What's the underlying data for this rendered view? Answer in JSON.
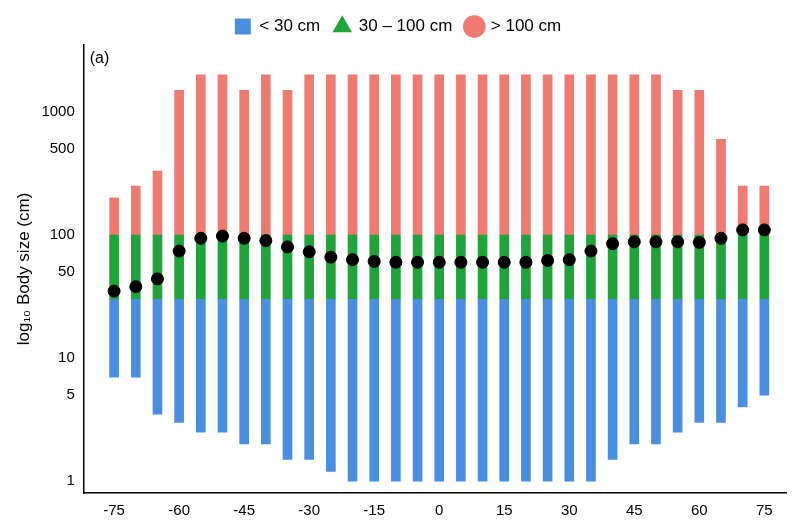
{
  "chart_data": {
    "type": "scatter",
    "annotation": "(a)",
    "y_label": "log₁₀ Body size (cm)",
    "log": "y",
    "grid": false,
    "legend": "top",
    "x": [
      -75,
      -70,
      -65,
      -60,
      -55,
      -50,
      -45,
      -40,
      -35,
      -30,
      -25,
      -20,
      -15,
      -10,
      -5,
      0,
      5,
      10,
      15,
      20,
      25,
      30,
      35,
      40,
      45,
      50,
      55,
      60,
      65,
      70,
      75
    ],
    "xlim": [
      -82,
      80
    ],
    "xticks": [
      -75,
      -60,
      -45,
      -30,
      -15,
      0,
      15,
      30,
      45,
      60,
      75
    ],
    "ylim": [
      0.8,
      3500
    ],
    "yticks": [
      1,
      5,
      10,
      50,
      100,
      500,
      1000
    ],
    "series": [
      {
        "name": "< 30 cm",
        "type": "bar",
        "marker": "square",
        "color": "#4a8ee0",
        "values": [
          [
            7,
            30
          ],
          [
            7,
            30
          ],
          [
            3.5,
            30
          ],
          [
            3,
            30
          ],
          [
            2.5,
            30
          ],
          [
            2.5,
            30
          ],
          [
            2,
            30
          ],
          [
            2,
            30
          ],
          [
            1.5,
            30
          ],
          [
            1.5,
            30
          ],
          [
            1.2,
            30
          ],
          [
            1,
            30
          ],
          [
            1,
            30
          ],
          [
            1,
            30
          ],
          [
            1,
            30
          ],
          [
            1,
            30
          ],
          [
            1,
            30
          ],
          [
            1,
            30
          ],
          [
            1,
            30
          ],
          [
            1,
            30
          ],
          [
            1,
            30
          ],
          [
            1,
            30
          ],
          [
            1,
            30
          ],
          [
            1.5,
            30
          ],
          [
            2,
            30
          ],
          [
            2,
            30
          ],
          [
            2.5,
            30
          ],
          [
            3,
            30
          ],
          [
            3,
            30
          ],
          [
            4,
            30
          ],
          [
            5,
            30
          ]
        ]
      },
      {
        "name": "30 – 100 cm",
        "type": "bar",
        "marker": "triangle",
        "color": "#1fa33a",
        "values": [
          [
            30,
            100
          ],
          [
            30,
            100
          ],
          [
            30,
            100
          ],
          [
            30,
            100
          ],
          [
            30,
            100
          ],
          [
            30,
            100
          ],
          [
            30,
            100
          ],
          [
            30,
            100
          ],
          [
            30,
            100
          ],
          [
            30,
            100
          ],
          [
            30,
            100
          ],
          [
            30,
            100
          ],
          [
            30,
            100
          ],
          [
            30,
            100
          ],
          [
            30,
            100
          ],
          [
            30,
            100
          ],
          [
            30,
            100
          ],
          [
            30,
            100
          ],
          [
            30,
            100
          ],
          [
            30,
            100
          ],
          [
            30,
            100
          ],
          [
            30,
            100
          ],
          [
            30,
            100
          ],
          [
            30,
            100
          ],
          [
            30,
            100
          ],
          [
            30,
            100
          ],
          [
            30,
            100
          ],
          [
            30,
            100
          ],
          [
            30,
            100
          ],
          [
            30,
            100
          ],
          [
            30,
            100
          ]
        ]
      },
      {
        "name": "> 100 cm",
        "type": "bar",
        "marker": "circle",
        "color": "#ee7a72",
        "values": [
          [
            100,
            200
          ],
          [
            100,
            250
          ],
          [
            100,
            330
          ],
          [
            100,
            1500
          ],
          [
            100,
            2000
          ],
          [
            100,
            2000
          ],
          [
            100,
            1500
          ],
          [
            100,
            2000
          ],
          [
            100,
            1500
          ],
          [
            100,
            2000
          ],
          [
            100,
            2000
          ],
          [
            100,
            2000
          ],
          [
            100,
            2000
          ],
          [
            100,
            2000
          ],
          [
            100,
            2000
          ],
          [
            100,
            2000
          ],
          [
            100,
            2000
          ],
          [
            100,
            2000
          ],
          [
            100,
            2000
          ],
          [
            100,
            2000
          ],
          [
            100,
            2000
          ],
          [
            100,
            2000
          ],
          [
            100,
            2000
          ],
          [
            100,
            2000
          ],
          [
            100,
            2000
          ],
          [
            100,
            2000
          ],
          [
            100,
            1500
          ],
          [
            100,
            1500
          ],
          [
            100,
            600
          ],
          [
            100,
            250
          ],
          [
            100,
            250
          ]
        ]
      },
      {
        "type": "scatter",
        "marker": "circle",
        "color": "#000000",
        "values": [
          35,
          38,
          44,
          74,
          94,
          98,
          94,
          90,
          80,
          73,
          66,
          63,
          61,
          60,
          60,
          60,
          60,
          60,
          60,
          60,
          62,
          63,
          74,
          85,
          88,
          88,
          88,
          87,
          94,
          110,
          110
        ]
      }
    ]
  }
}
